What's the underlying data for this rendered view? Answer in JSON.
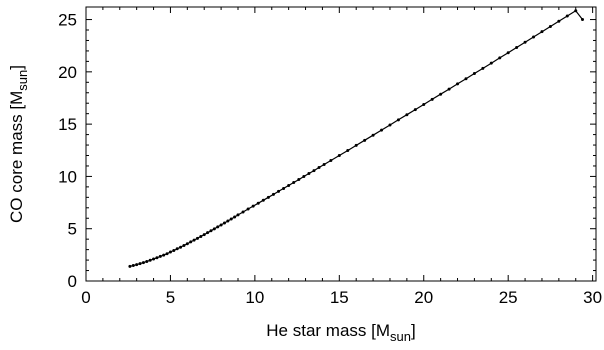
{
  "chart_data": {
    "type": "line",
    "title": "",
    "xlabel": {
      "main": "He star mass [M",
      "sub": "sun",
      "close": "]"
    },
    "ylabel": {
      "main": "CO core mass [M",
      "sub": "sun",
      "close": "]"
    },
    "xlim": [
      0,
      30.2
    ],
    "ylim": [
      0,
      26.2
    ],
    "x_ticks": [
      0,
      5,
      10,
      15,
      20,
      25,
      30
    ],
    "y_ticks": [
      0,
      5,
      10,
      15,
      20,
      25
    ],
    "grid": false,
    "legend": "none",
    "series": [
      {
        "color": "#000000",
        "marker": "point",
        "x": [
          2.6,
          2.8,
          3.0,
          3.2,
          3.4,
          3.6,
          3.8,
          4.0,
          4.2,
          4.4,
          4.6,
          4.8,
          5.0,
          5.2,
          5.4,
          5.6,
          5.8,
          6.0,
          6.2,
          6.4,
          6.6,
          6.8,
          7.0,
          7.2,
          7.4,
          7.6,
          7.8,
          8.0,
          8.2,
          8.4,
          8.6,
          8.8,
          9.0,
          9.3,
          9.6,
          9.9,
          10.2,
          10.5,
          10.8,
          11.1,
          11.4,
          11.7,
          12.0,
          12.3,
          12.6,
          12.9,
          13.2,
          13.5,
          13.8,
          14.1,
          14.5,
          15.0,
          15.5,
          16.0,
          16.5,
          17.0,
          17.5,
          18.0,
          18.5,
          19.0,
          19.5,
          20.0,
          20.5,
          21.0,
          21.5,
          22.0,
          22.5,
          23.0,
          23.5,
          24.0,
          24.5,
          25.0,
          25.5,
          26.0,
          26.5,
          27.0,
          27.5,
          28.0,
          28.5,
          29.0,
          29.4
        ],
        "y": [
          1.4,
          1.48,
          1.56,
          1.66,
          1.76,
          1.87,
          1.98,
          2.1,
          2.22,
          2.35,
          2.48,
          2.61,
          2.77,
          2.92,
          3.08,
          3.23,
          3.4,
          3.56,
          3.74,
          3.91,
          4.08,
          4.26,
          4.44,
          4.62,
          4.8,
          4.99,
          5.17,
          5.36,
          5.55,
          5.74,
          5.93,
          6.12,
          6.32,
          6.6,
          6.88,
          7.16,
          7.44,
          7.72,
          8.0,
          8.28,
          8.57,
          8.85,
          9.13,
          9.42,
          9.7,
          9.99,
          10.28,
          10.56,
          10.85,
          11.14,
          11.52,
          12.0,
          12.48,
          12.97,
          13.45,
          13.94,
          14.43,
          14.92,
          15.41,
          15.9,
          16.39,
          16.88,
          17.37,
          17.86,
          18.35,
          18.85,
          19.34,
          19.84,
          20.33,
          20.83,
          21.33,
          21.83,
          22.33,
          22.83,
          23.33,
          23.84,
          24.34,
          24.84,
          25.34,
          25.84,
          25.0
        ]
      }
    ]
  }
}
